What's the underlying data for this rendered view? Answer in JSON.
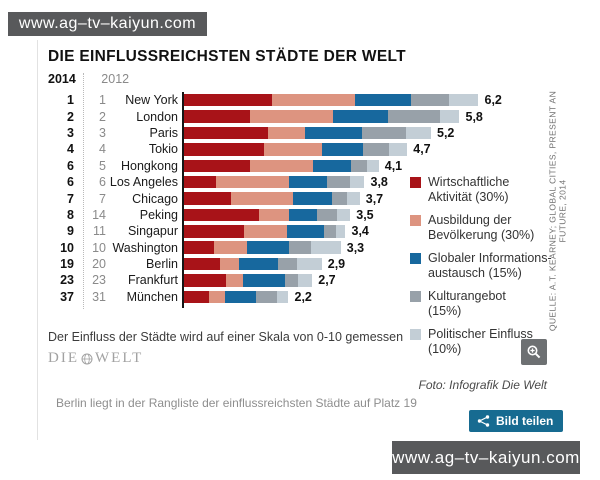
{
  "watermark_top": "www.ag–tv–kaiyun.com",
  "watermark_bottom": "www.ag–tv–kaiyun.com",
  "infographic": {
    "title": "DIE EINFLUSSREICHSTEN STÄDTE DER WELT",
    "year_col_left": "2014",
    "year_col_right": "2012",
    "scale_note": "Der Einfluss der Städte wird auf einer Skala von 0-10 gemessen",
    "brand_part1": "DIE",
    "brand_part2": "WELT",
    "source_vertical": "QUELLE: A.T. KEARNEY; GLOBAL CITIES, PRESENT AN FUTURE, 2014",
    "photo_credit": "Foto: Infografik Die Welt"
  },
  "caption": "Berlin liegt in der Rangliste der einflussreichsten Städte auf Platz 19",
  "share_button": {
    "label": "Bild teilen",
    "color": "#176b91"
  },
  "zoom_button": {
    "icon": "magnifier-plus-icon"
  },
  "chart_data": {
    "type": "bar",
    "orientation": "horizontal",
    "stacked": true,
    "title": "DIE EINFLUSSREICHSTEN STÄDTE DER WELT",
    "value_scale": "0-10",
    "xlim": [
      0,
      6.5
    ],
    "legend_position": "right",
    "segment_names": [
      "Wirtschaftliche Aktivität",
      "Ausbildung der Bevölkerung",
      "Globaler Informationsaustausch",
      "Kulturangebot",
      "Politischer Einfluss"
    ],
    "segment_weights_pct": [
      30,
      30,
      15,
      15,
      10
    ],
    "segment_colors": [
      "#a81318",
      "#dd9480",
      "#17689e",
      "#98a1a9",
      "#c3ced6"
    ],
    "legend_display": [
      {
        "line1": "Wirtschaftliche",
        "line2": "Aktivität (30%)"
      },
      {
        "line1": "Ausbildung der",
        "line2": "Bevölkerung (30%)"
      },
      {
        "line1": "Globaler Informations-",
        "line2": "austausch (15%)"
      },
      {
        "line1": "Kulturangebot",
        "line2": "(15%)"
      },
      {
        "line1": "Politischer Einfluss",
        "line2": "(10%)"
      }
    ],
    "rows": [
      {
        "rank_2014": "1",
        "rank_2012": "1",
        "city": "New York",
        "total": "6,2",
        "total_value": 6.2,
        "segments_pct": [
          30,
          28,
          19,
          13,
          10
        ]
      },
      {
        "rank_2014": "2",
        "rank_2012": "2",
        "city": "London",
        "total": "5,8",
        "total_value": 5.8,
        "segments_pct": [
          24,
          30,
          20,
          19,
          7
        ]
      },
      {
        "rank_2014": "3",
        "rank_2012": "3",
        "city": "Paris",
        "total": "5,2",
        "total_value": 5.2,
        "segments_pct": [
          34,
          15,
          23,
          18,
          10
        ]
      },
      {
        "rank_2014": "4",
        "rank_2012": "4",
        "city": "Tokio",
        "total": "4,7",
        "total_value": 4.7,
        "segments_pct": [
          36,
          26,
          18,
          12,
          8
        ]
      },
      {
        "rank_2014": "6",
        "rank_2012": "5",
        "city": "Hongkong",
        "total": "4,1",
        "total_value": 4.1,
        "segments_pct": [
          34,
          32,
          20,
          8,
          6
        ]
      },
      {
        "rank_2014": "6",
        "rank_2012": "6",
        "city": "Los Angeles",
        "total": "3,8",
        "total_value": 3.8,
        "segments_pct": [
          18,
          40,
          21,
          13,
          8
        ]
      },
      {
        "rank_2014": "7",
        "rank_2012": "7",
        "city": "Chicago",
        "total": "3,7",
        "total_value": 3.7,
        "segments_pct": [
          27,
          35,
          22,
          9,
          7
        ]
      },
      {
        "rank_2014": "8",
        "rank_2012": "14",
        "city": "Peking",
        "total": "3,5",
        "total_value": 3.5,
        "segments_pct": [
          45,
          18,
          17,
          12,
          8
        ]
      },
      {
        "rank_2014": "9",
        "rank_2012": "11",
        "city": "Singapur",
        "total": "3,4",
        "total_value": 3.4,
        "segments_pct": [
          37,
          27,
          23,
          7,
          6
        ]
      },
      {
        "rank_2014": "10",
        "rank_2012": "10",
        "city": "Washington",
        "total": "3,3",
        "total_value": 3.3,
        "segments_pct": [
          19,
          21,
          27,
          14,
          19
        ]
      },
      {
        "rank_2014": "19",
        "rank_2012": "20",
        "city": "Berlin",
        "total": "2,9",
        "total_value": 2.9,
        "segments_pct": [
          26,
          14,
          28,
          14,
          18
        ]
      },
      {
        "rank_2014": "23",
        "rank_2012": "23",
        "city": "Frankfurt",
        "total": "2,7",
        "total_value": 2.7,
        "segments_pct": [
          33,
          13,
          33,
          10,
          11
        ]
      },
      {
        "rank_2014": "37",
        "rank_2012": "31",
        "city": "München",
        "total": "2,2",
        "total_value": 2.2,
        "segments_pct": [
          24,
          15,
          30,
          20,
          11
        ]
      }
    ]
  }
}
